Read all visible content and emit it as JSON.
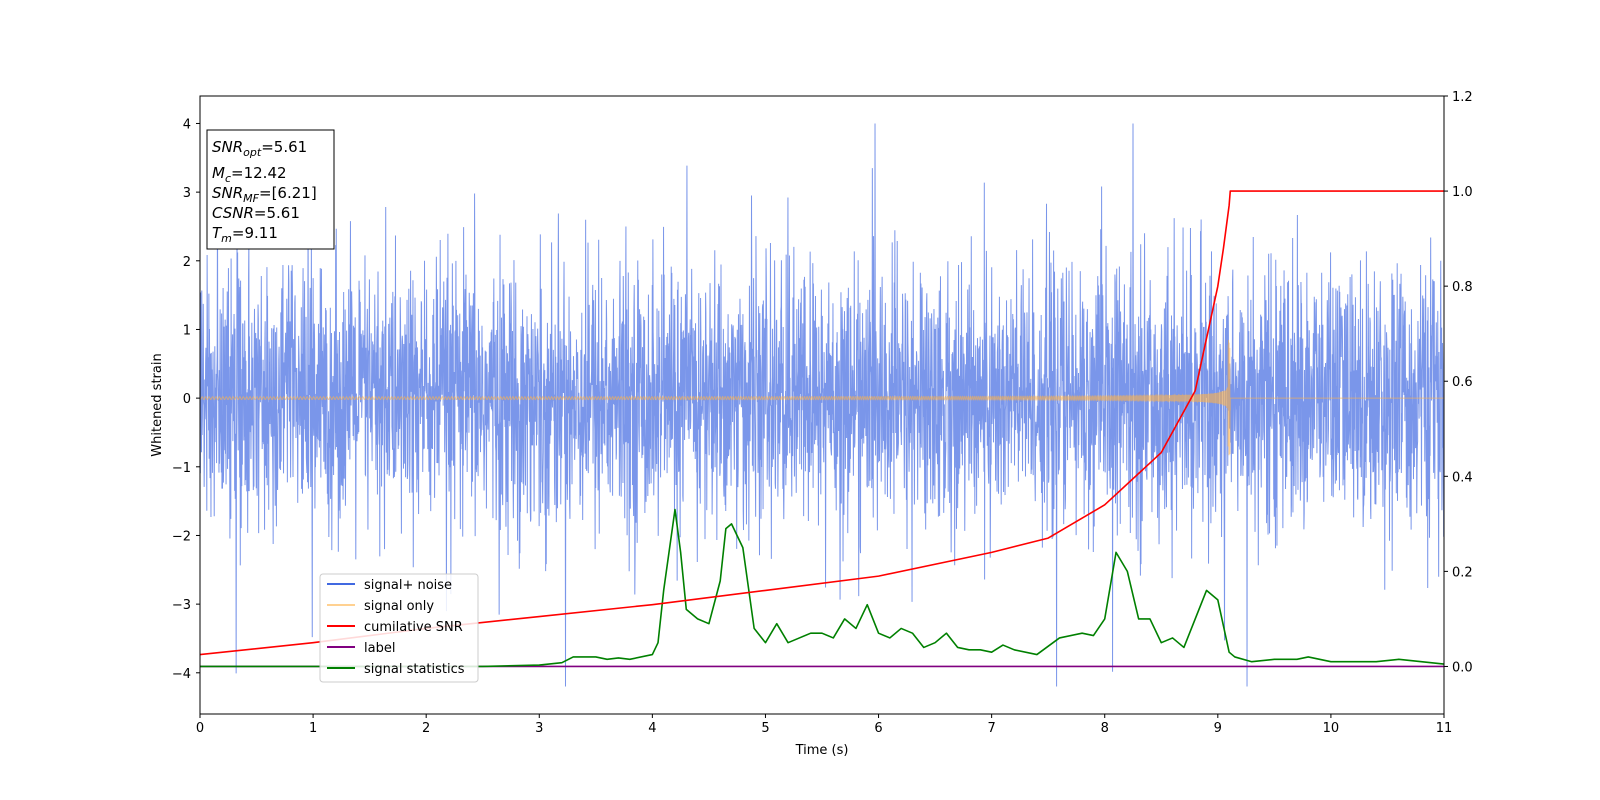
{
  "chart_data": {
    "type": "line",
    "title": "",
    "xlabel": "Time (s)",
    "ylabel": "Whitened strain",
    "xlim": [
      0,
      11
    ],
    "ylim_left": [
      -4.6,
      4.4
    ],
    "ylim_right": [
      -0.1,
      1.2
    ],
    "x_ticks": [
      "0",
      "1",
      "2",
      "3",
      "4",
      "5",
      "6",
      "7",
      "8",
      "9",
      "10",
      "11"
    ],
    "y_ticks_left": [
      "−4",
      "−3",
      "−2",
      "−1",
      "0",
      "1",
      "2",
      "3",
      "4"
    ],
    "y_ticks_right": [
      "0.0",
      "0.2",
      "0.4",
      "0.6",
      "0.8",
      "1.0",
      "1.2"
    ],
    "grid": false,
    "legend_position": "lower-left",
    "colors": {
      "signal_noise": "#4169e1",
      "signal_only": "#ffb347",
      "cumulative_snr": "#ff0000",
      "label": "#800080",
      "signal_statistics": "#008000"
    },
    "annotation": {
      "snr_opt": {
        "sym": "SNR",
        "sub": "opt",
        "value": "=5.61"
      },
      "mc": {
        "sym": "M",
        "sub": "c",
        "value": "=12.42"
      },
      "snr_mf": {
        "sym": "SNR",
        "sub": "MF",
        "value": "=[6.21]"
      },
      "csnr": {
        "sym": "CSNR",
        "value": "=5.61"
      },
      "tm": {
        "sym": "T",
        "sub": "m",
        "value": "=9.11"
      }
    },
    "series": [
      {
        "name": "signal+ noise",
        "axis": "left",
        "description_values": {
          "amplitude_std": 1.0,
          "range": [
            -4.2,
            4.0
          ],
          "x_range": [
            0,
            11
          ]
        }
      },
      {
        "name": "signal only",
        "axis": "left",
        "chirp": {
          "t_merge": 9.11,
          "peak_amplitude": 0.85,
          "min_amplitude": -0.95
        }
      },
      {
        "name": "cumilative SNR",
        "axis": "right",
        "x": [
          0,
          1,
          2,
          3,
          4,
          5,
          6,
          7,
          7.5,
          8,
          8.5,
          8.8,
          9.0,
          9.05,
          9.1,
          9.11,
          11
        ],
        "values": [
          0.025,
          0.05,
          0.08,
          0.105,
          0.13,
          0.16,
          0.19,
          0.24,
          0.27,
          0.34,
          0.45,
          0.58,
          0.8,
          0.88,
          0.97,
          1.0,
          1.0
        ]
      },
      {
        "name": "label",
        "axis": "right",
        "x": [
          0,
          11
        ],
        "values": [
          0.0,
          0.0
        ]
      },
      {
        "name": "signal statistics",
        "axis": "right",
        "x": [
          0,
          1,
          2,
          2.5,
          3,
          3.2,
          3.3,
          3.5,
          3.6,
          3.7,
          3.8,
          4.0,
          4.05,
          4.1,
          4.2,
          4.25,
          4.3,
          4.4,
          4.5,
          4.6,
          4.65,
          4.7,
          4.8,
          4.9,
          5.0,
          5.1,
          5.2,
          5.3,
          5.4,
          5.5,
          5.6,
          5.7,
          5.8,
          5.9,
          6.0,
          6.1,
          6.2,
          6.3,
          6.4,
          6.5,
          6.6,
          6.7,
          6.8,
          6.9,
          7.0,
          7.1,
          7.2,
          7.4,
          7.6,
          7.8,
          7.9,
          8.0,
          8.1,
          8.2,
          8.3,
          8.4,
          8.5,
          8.6,
          8.7,
          8.8,
          8.9,
          9.0,
          9.1,
          9.15,
          9.3,
          9.5,
          9.7,
          9.8,
          9.9,
          10.0,
          10.2,
          10.4,
          10.6,
          10.8,
          11.0
        ],
        "values": [
          0.0,
          0.0,
          0.0,
          0.0,
          0.003,
          0.008,
          0.02,
          0.02,
          0.015,
          0.018,
          0.015,
          0.025,
          0.05,
          0.16,
          0.33,
          0.24,
          0.12,
          0.1,
          0.09,
          0.18,
          0.29,
          0.3,
          0.25,
          0.08,
          0.05,
          0.09,
          0.05,
          0.06,
          0.07,
          0.07,
          0.06,
          0.1,
          0.08,
          0.13,
          0.07,
          0.06,
          0.08,
          0.07,
          0.04,
          0.05,
          0.07,
          0.04,
          0.035,
          0.035,
          0.03,
          0.045,
          0.035,
          0.025,
          0.06,
          0.07,
          0.065,
          0.1,
          0.24,
          0.2,
          0.1,
          0.1,
          0.05,
          0.06,
          0.04,
          0.1,
          0.16,
          0.14,
          0.03,
          0.02,
          0.01,
          0.015,
          0.015,
          0.02,
          0.015,
          0.01,
          0.01,
          0.01,
          0.015,
          0.01,
          0.005
        ]
      }
    ]
  }
}
